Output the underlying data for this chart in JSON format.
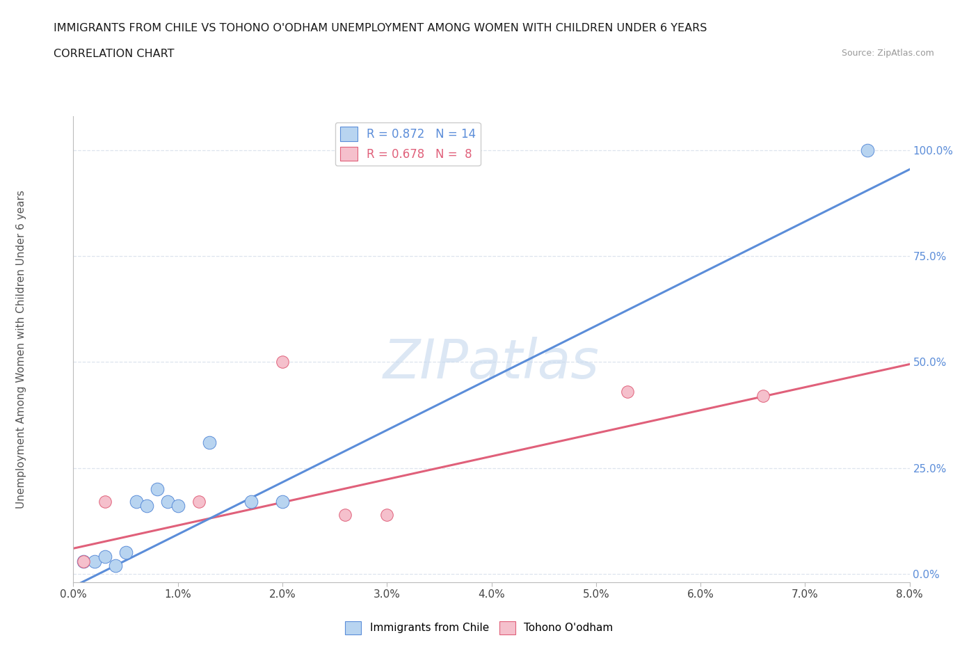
{
  "title_line1": "IMMIGRANTS FROM CHILE VS TOHONO O'ODHAM UNEMPLOYMENT AMONG WOMEN WITH CHILDREN UNDER 6 YEARS",
  "title_line2": "CORRELATION CHART",
  "source_text": "Source: ZipAtlas.com",
  "xlabel_ticks": [
    "0.0%",
    "1.0%",
    "2.0%",
    "3.0%",
    "4.0%",
    "5.0%",
    "6.0%",
    "7.0%",
    "8.0%"
  ],
  "xlabel_vals": [
    0.0,
    0.01,
    0.02,
    0.03,
    0.04,
    0.05,
    0.06,
    0.07,
    0.08
  ],
  "ylabel_ticks": [
    "0.0%",
    "25.0%",
    "50.0%",
    "75.0%",
    "100.0%"
  ],
  "ylabel_vals": [
    0.0,
    0.25,
    0.5,
    0.75,
    1.0
  ],
  "ylabel_label": "Unemployment Among Women with Children Under 6 years",
  "xlim": [
    0.0,
    0.08
  ],
  "ylim": [
    -0.02,
    1.08
  ],
  "watermark": "ZIPatlas",
  "chile_scatter_x": [
    0.001,
    0.002,
    0.003,
    0.004,
    0.005,
    0.006,
    0.007,
    0.008,
    0.009,
    0.01,
    0.013,
    0.017,
    0.02,
    0.076
  ],
  "chile_scatter_y": [
    0.03,
    0.03,
    0.04,
    0.02,
    0.05,
    0.17,
    0.16,
    0.2,
    0.17,
    0.16,
    0.31,
    0.17,
    0.17,
    1.0
  ],
  "chile_line_x": [
    0.0,
    0.08
  ],
  "chile_line_y": [
    -0.03,
    0.955
  ],
  "chile_R": "0.872",
  "chile_N": "14",
  "tohono_scatter_x": [
    0.001,
    0.003,
    0.012,
    0.02,
    0.026,
    0.03,
    0.053,
    0.066
  ],
  "tohono_scatter_y": [
    0.03,
    0.17,
    0.17,
    0.5,
    0.14,
    0.14,
    0.43,
    0.42
  ],
  "tohono_line_x": [
    0.0,
    0.08
  ],
  "tohono_line_y": [
    0.06,
    0.495
  ],
  "tohono_R": "0.678",
  "tohono_N": "8",
  "chile_color": "#b8d4f0",
  "chile_line_color": "#5b8dd9",
  "tohono_color": "#f5c0cc",
  "tohono_line_color": "#e0607a",
  "grid_color": "#dde4ee",
  "bg_color": "#ffffff",
  "scatter_size_chile": 180,
  "scatter_size_tohono": 160
}
